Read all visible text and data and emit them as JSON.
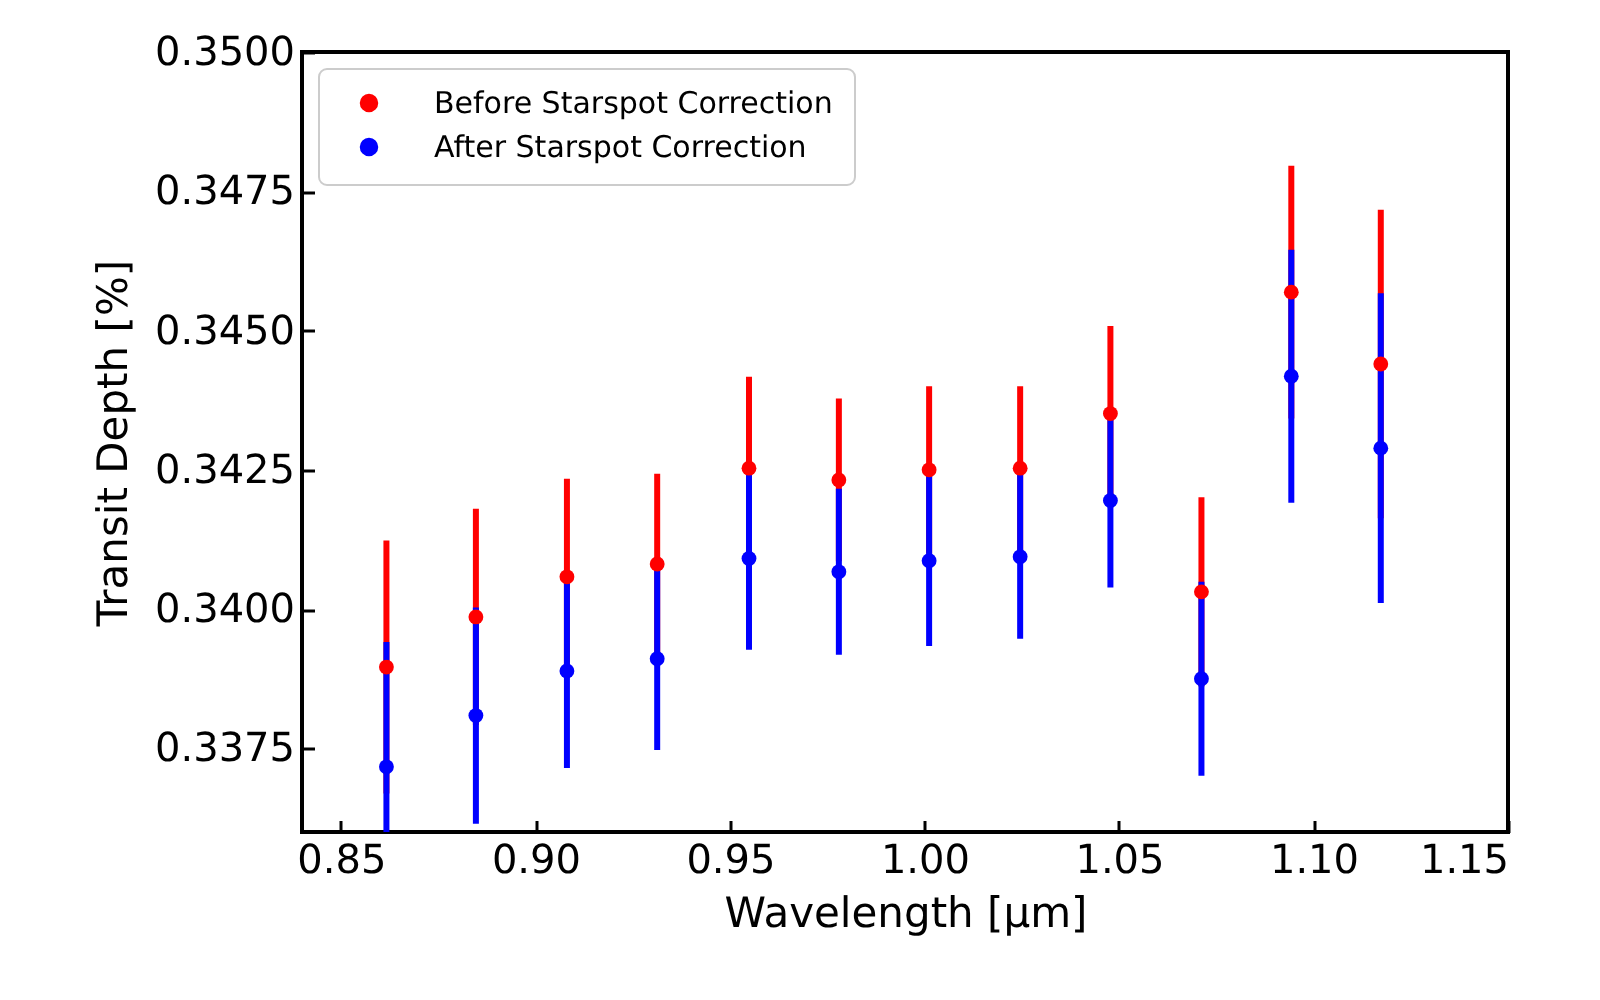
{
  "chart_data": {
    "type": "scatter",
    "xlabel": "Wavelength [μm]",
    "ylabel": "Transit Depth [%]",
    "x": [
      0.8617,
      0.8847,
      0.9081,
      0.9313,
      0.9549,
      0.978,
      1.0012,
      1.0246,
      1.0478,
      1.0712,
      1.0943,
      1.1173
    ],
    "series": [
      {
        "name": "Before Starspot Correction",
        "color": "#ff0000",
        "values": [
          0.33896,
          0.33986,
          0.34058,
          0.34081,
          0.34253,
          0.34232,
          0.3425,
          0.34253,
          0.34351,
          0.34031,
          0.34569,
          0.3444
        ],
        "errors": [
          0.00227,
          0.00194,
          0.00176,
          0.00162,
          0.00164,
          0.00146,
          0.0015,
          0.00147,
          0.00157,
          0.0017,
          0.00227,
          0.00277
        ]
      },
      {
        "name": "After Starspot Correction",
        "color": "#0000ff",
        "values": [
          0.33717,
          0.33809,
          0.33889,
          0.33911,
          0.34091,
          0.34067,
          0.34087,
          0.34094,
          0.34195,
          0.33875,
          0.34418,
          0.34289
        ],
        "errors": [
          [
            0.336,
            0.33941
          ],
          0.00194,
          0.00174,
          0.00164,
          0.00164,
          0.00149,
          0.00153,
          0.00147,
          0.00156,
          0.00174,
          0.00227,
          0.00278
        ]
      }
    ],
    "xlim": [
      0.84,
      1.15
    ],
    "xticks": [
      {
        "value": 0.85,
        "label": "0.85"
      },
      {
        "value": 0.9,
        "label": "0.90"
      },
      {
        "value": 0.95,
        "label": "0.95"
      },
      {
        "value": 1.0,
        "label": "1.00"
      },
      {
        "value": 1.05,
        "label": "1.05"
      },
      {
        "value": 1.1,
        "label": "1.10"
      },
      {
        "value": 1.15,
        "label": "1.15"
      }
    ],
    "ylim": [
      0.336,
      0.35
    ],
    "yticks": [
      {
        "value": 0.3375,
        "label": "0.3375"
      },
      {
        "value": 0.34,
        "label": "0.3400"
      },
      {
        "value": 0.3425,
        "label": "0.3425"
      },
      {
        "value": 0.345,
        "label": "0.3450"
      },
      {
        "value": 0.3475,
        "label": "0.3475"
      },
      {
        "value": 0.35,
        "label": "0.3500"
      }
    ],
    "legend": "top left",
    "marker": "circle",
    "grid": false
  }
}
